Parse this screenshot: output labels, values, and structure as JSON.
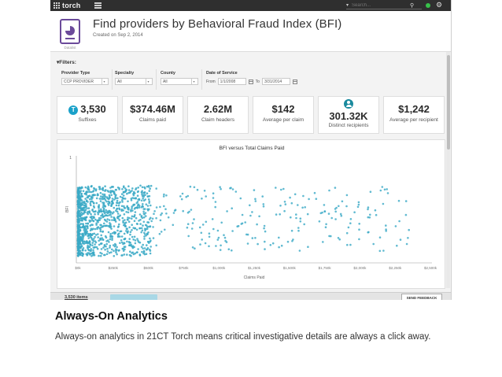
{
  "app": {
    "brand": "torch",
    "search_placeholder": "Search..."
  },
  "header": {
    "doc_label": "Datalist",
    "title": "Find providers by Behavioral Fraud Index (BFI)",
    "subtitle": "Created on Sep 2, 2014"
  },
  "filters": {
    "heading": "Filters:",
    "provider_type": {
      "label": "Provider Type",
      "value": "CCP PROVIDER"
    },
    "specialty": {
      "label": "Specialty",
      "value": "All"
    },
    "county": {
      "label": "County",
      "value": "All"
    },
    "date_of_service": {
      "label": "Date of Service",
      "from_label": "From",
      "from": "1/1/2008",
      "to_label": "To",
      "to": "3/31/2014"
    }
  },
  "stats": [
    {
      "value": "3,530",
      "label": "Suffixes",
      "icon": "torch-badge-icon"
    },
    {
      "value": "$374.46M",
      "label": "Claims paid"
    },
    {
      "value": "2.62M",
      "label": "Claim headers"
    },
    {
      "value": "$142",
      "label": "Average per claim"
    },
    {
      "value": "301.32K",
      "label": "Distinct recipients",
      "icon": "person-icon"
    },
    {
      "value": "$1,242",
      "label": "Average per recipient"
    }
  ],
  "chart_data": {
    "type": "scatter",
    "title": "BFI versus Total Claims Paid",
    "xlabel": "Claims Paid",
    "ylabel": "BFI",
    "xlim": [
      0,
      2500000
    ],
    "ylim": [
      0,
      1
    ],
    "x_ticks": [
      "$0k",
      "$250k",
      "$500k",
      "$750k",
      "$1,000k",
      "$1,250k",
      "$1,500k",
      "$1,750k",
      "$2,000k",
      "$2,250k",
      "$2,500k"
    ],
    "y_ticks": [
      "1"
    ],
    "grid": false,
    "point_color": "#3aa9c6"
  },
  "footer": {
    "items": "3,530 items",
    "ghost_button": "",
    "feedback": "SEND FEEDBACK"
  },
  "slide": {
    "title": "Always-On Analytics",
    "body": "Always-on analytics in 21CT Torch means critical investigative details are always a click away."
  }
}
